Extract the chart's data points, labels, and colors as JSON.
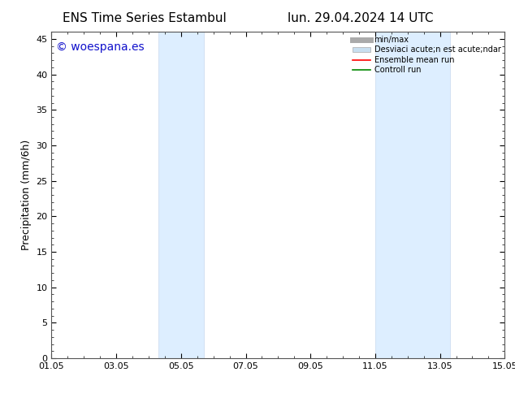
{
  "title_left": "ENS Time Series Estambul",
  "title_right": "lun. 29.04.2024 14 UTC",
  "ylabel": "Precipitation (mm/6h)",
  "watermark": "© woespana.es",
  "watermark_color": "#1111cc",
  "xtick_labels": [
    "01.05",
    "03.05",
    "05.05",
    "07.05",
    "09.05",
    "11.05",
    "13.05",
    "15.05"
  ],
  "xtick_positions": [
    1,
    3,
    5,
    7,
    9,
    11,
    13,
    15
  ],
  "ylim": [
    0,
    46
  ],
  "ytick_positions": [
    0,
    5,
    10,
    15,
    20,
    25,
    30,
    35,
    40,
    45
  ],
  "shaded_bands": [
    {
      "x_start": 4.3,
      "x_end": 5.7
    },
    {
      "x_start": 11.0,
      "x_end": 13.3
    }
  ],
  "band_color": "#ddeeff",
  "band_edge_color": "#c8d8ee",
  "background_color": "#ffffff",
  "legend_label_minmax": "min/max",
  "legend_label_std": "Desviaci acute;n est acute;ndar",
  "legend_label_ensemble": "Ensemble mean run",
  "legend_label_control": "Controll run",
  "color_minmax": "#aaaaaa",
  "color_std": "#c8dff0",
  "color_ensemble": "#ff0000",
  "color_control": "#008800",
  "title_fontsize": 11,
  "axis_fontsize": 9,
  "tick_fontsize": 8,
  "watermark_fontsize": 10
}
